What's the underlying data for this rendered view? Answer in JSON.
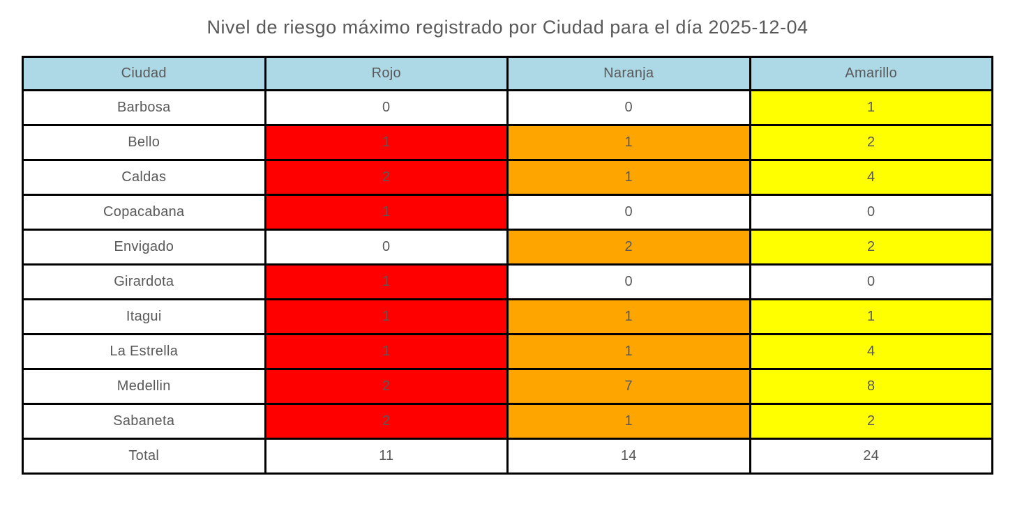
{
  "title": "Nivel de riesgo máximo registrado por Ciudad para el día 2025-12-04",
  "chart_data": {
    "type": "table",
    "title": "Nivel de riesgo máximo registrado por Ciudad para el día 2025-12-04",
    "columns": [
      "Ciudad",
      "Rojo",
      "Naranja",
      "Amarillo"
    ],
    "rows": [
      {
        "ciudad": "Barbosa",
        "values": [
          0,
          0,
          1
        ],
        "cell_colors": [
          "white",
          "white",
          "yellow"
        ]
      },
      {
        "ciudad": "Bello",
        "values": [
          1,
          1,
          2
        ],
        "cell_colors": [
          "red",
          "orange",
          "yellow"
        ]
      },
      {
        "ciudad": "Caldas",
        "values": [
          2,
          1,
          4
        ],
        "cell_colors": [
          "red",
          "orange",
          "yellow"
        ]
      },
      {
        "ciudad": "Copacabana",
        "values": [
          1,
          0,
          0
        ],
        "cell_colors": [
          "red",
          "white",
          "white"
        ]
      },
      {
        "ciudad": "Envigado",
        "values": [
          0,
          2,
          2
        ],
        "cell_colors": [
          "white",
          "orange",
          "yellow"
        ]
      },
      {
        "ciudad": "Girardota",
        "values": [
          1,
          0,
          0
        ],
        "cell_colors": [
          "red",
          "white",
          "white"
        ]
      },
      {
        "ciudad": "Itagui",
        "values": [
          1,
          1,
          1
        ],
        "cell_colors": [
          "red",
          "orange",
          "yellow"
        ]
      },
      {
        "ciudad": "La Estrella",
        "values": [
          1,
          1,
          4
        ],
        "cell_colors": [
          "red",
          "orange",
          "yellow"
        ]
      },
      {
        "ciudad": "Medellin",
        "values": [
          2,
          7,
          8
        ],
        "cell_colors": [
          "red",
          "orange",
          "yellow"
        ]
      },
      {
        "ciudad": "Sabaneta",
        "values": [
          2,
          1,
          2
        ],
        "cell_colors": [
          "red",
          "orange",
          "yellow"
        ]
      },
      {
        "ciudad": "Total",
        "values": [
          11,
          14,
          24
        ],
        "cell_colors": [
          "white",
          "white",
          "white"
        ]
      }
    ],
    "totals": {
      "rojo": 11,
      "naranja": 14,
      "amarillo": 24
    },
    "colors": {
      "white": "#FFFFFF",
      "red": "#FF0000",
      "orange": "#FFA500",
      "yellow": "#FFFF00",
      "header": "#ADD8E6",
      "text": "#595959",
      "border": "#000000"
    },
    "layout": {
      "grid": false,
      "legend": "none"
    }
  }
}
